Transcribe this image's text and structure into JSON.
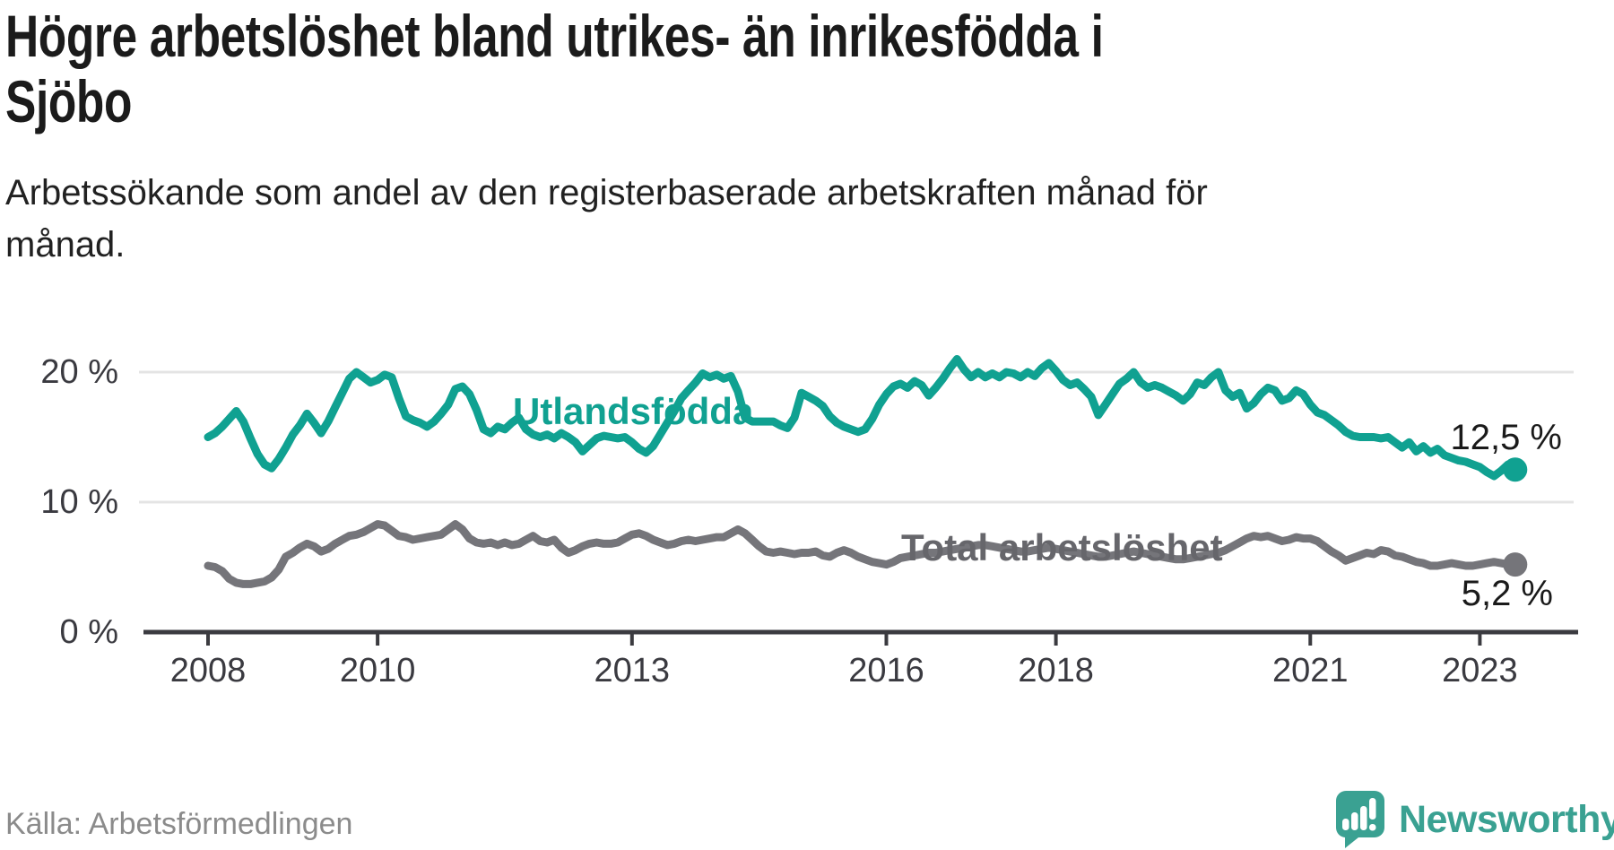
{
  "header": {
    "title": "Högre arbetslöshet bland utrikes- än inrikesfödda i Sjöbo",
    "title_lines": [
      "Högre arbetslöshet bland utrikes- än inrikesfödda i",
      "Sjöbo"
    ],
    "subtitle": "Arbetssökande som andel av den registerbaserade arbetskraften månad för månad.",
    "subtitle_lines": [
      "Arbetssökande som andel av den registerbaserade arbetskraften månad för",
      "månad."
    ]
  },
  "footer": {
    "source": "Källa: Arbetsförmedlingen",
    "brand_name": "Newsworthy",
    "brand_color": "#3aa192",
    "brand_icon": "speech-bubble-bar-chart-exclamation"
  },
  "chart_data": {
    "type": "line",
    "title": "Högre arbetslöshet bland utrikes- än inrikesfödda i Sjöbo",
    "subtitle": "Arbetssökande som andel av den registerbaserade arbetskraften månad för månad.",
    "x_start": "2008-01",
    "x_end": "2023-06",
    "x_frequency": "monthly",
    "ylim": [
      0,
      22
    ],
    "grid": "horizontal",
    "axis_color": "#3b3b40",
    "grid_color": "#e4e4e4",
    "y_axis": {
      "ticks": [
        {
          "value": 0,
          "label": "0 %"
        },
        {
          "value": 10,
          "label": "10 %"
        },
        {
          "value": 20,
          "label": "20 %"
        }
      ]
    },
    "x_tick_years": [
      2008,
      2010,
      2013,
      2016,
      2018,
      2021,
      2023
    ],
    "series": [
      {
        "name": "Utlandsfödda",
        "color": "#10a191",
        "label_color": "#10a191",
        "end_label": "12,5 %",
        "end_value": 12.5,
        "values": [
          15.0,
          15.3,
          15.8,
          16.4,
          17.0,
          16.2,
          14.9,
          13.7,
          12.9,
          12.6,
          13.3,
          14.2,
          15.2,
          15.9,
          16.8,
          16.1,
          15.3,
          16.2,
          17.3,
          18.4,
          19.5,
          20.0,
          19.6,
          19.2,
          19.4,
          19.8,
          19.6,
          18.0,
          16.6,
          16.3,
          16.1,
          15.8,
          16.2,
          16.8,
          17.5,
          18.7,
          18.9,
          18.3,
          17.1,
          15.6,
          15.3,
          15.8,
          15.6,
          16.1,
          16.5,
          15.6,
          15.2,
          15.0,
          15.2,
          14.9,
          15.3,
          15.0,
          14.6,
          13.9,
          14.4,
          14.9,
          15.1,
          15.0,
          14.9,
          15.0,
          14.6,
          14.1,
          13.8,
          14.3,
          15.2,
          16.1,
          17.0,
          18.0,
          18.6,
          19.2,
          19.9,
          19.6,
          19.8,
          19.5,
          19.7,
          18.5,
          16.5,
          16.2,
          16.2,
          16.2,
          16.2,
          15.9,
          15.7,
          16.5,
          18.4,
          18.1,
          17.8,
          17.4,
          16.6,
          16.1,
          15.8,
          15.6,
          15.4,
          15.6,
          16.4,
          17.5,
          18.3,
          18.9,
          19.1,
          18.8,
          19.3,
          19.0,
          18.2,
          18.8,
          19.5,
          20.3,
          21.0,
          20.2,
          19.6,
          20.0,
          19.6,
          19.9,
          19.6,
          20.0,
          19.9,
          19.6,
          20.0,
          19.7,
          20.3,
          20.7,
          20.1,
          19.4,
          19.0,
          19.2,
          18.7,
          18.1,
          16.7,
          17.5,
          18.3,
          19.1,
          19.5,
          20.0,
          19.2,
          18.8,
          19.0,
          18.8,
          18.5,
          18.2,
          17.8,
          18.3,
          19.2,
          19.0,
          19.6,
          20.0,
          18.6,
          18.1,
          18.4,
          17.2,
          17.6,
          18.3,
          18.8,
          18.6,
          17.8,
          18.0,
          18.6,
          18.3,
          17.5,
          16.9,
          16.7,
          16.3,
          15.9,
          15.4,
          15.1,
          15.0,
          15.0,
          15.0,
          14.9,
          15.0,
          14.6,
          14.2,
          14.6,
          13.9,
          14.3,
          13.8,
          14.1,
          13.6,
          13.4,
          13.2,
          13.1,
          12.9,
          12.7,
          12.3,
          12.0,
          12.4,
          12.9,
          12.5
        ]
      },
      {
        "name": "Total arbetslöshet",
        "color": "#75757a",
        "label_color": "#66666b",
        "end_label": "5,2 %",
        "end_value": 5.2,
        "values": [
          5.1,
          5.0,
          4.7,
          4.1,
          3.8,
          3.7,
          3.7,
          3.8,
          3.9,
          4.2,
          4.8,
          5.8,
          6.1,
          6.5,
          6.8,
          6.6,
          6.2,
          6.4,
          6.8,
          7.1,
          7.4,
          7.5,
          7.7,
          8.0,
          8.3,
          8.2,
          7.8,
          7.4,
          7.3,
          7.1,
          7.2,
          7.3,
          7.4,
          7.5,
          7.9,
          8.3,
          7.9,
          7.2,
          6.9,
          6.8,
          6.9,
          6.7,
          6.9,
          6.7,
          6.8,
          7.1,
          7.4,
          7.0,
          6.9,
          7.1,
          6.5,
          6.1,
          6.3,
          6.6,
          6.8,
          6.9,
          6.8,
          6.8,
          6.9,
          7.2,
          7.5,
          7.6,
          7.4,
          7.1,
          6.9,
          6.7,
          6.8,
          7.0,
          7.1,
          7.0,
          7.1,
          7.2,
          7.3,
          7.3,
          7.6,
          7.9,
          7.6,
          7.1,
          6.6,
          6.2,
          6.1,
          6.2,
          6.1,
          6.0,
          6.1,
          6.1,
          6.2,
          5.9,
          5.8,
          6.1,
          6.3,
          6.1,
          5.8,
          5.6,
          5.4,
          5.3,
          5.2,
          5.4,
          5.7,
          5.8,
          5.9,
          6.0,
          6.1,
          6.1,
          6.2,
          6.3,
          6.4,
          6.5,
          6.6,
          6.7,
          6.7,
          6.6,
          6.5,
          6.4,
          6.3,
          6.2,
          6.2,
          6.3,
          6.4,
          6.5,
          6.4,
          6.3,
          6.2,
          6.1,
          6.0,
          5.9,
          5.8,
          5.8,
          5.9,
          6.0,
          6.1,
          6.2,
          6.1,
          6.0,
          5.9,
          5.8,
          5.7,
          5.6,
          5.6,
          5.7,
          5.8,
          5.9,
          6.0,
          6.1,
          6.3,
          6.6,
          6.9,
          7.2,
          7.4,
          7.3,
          7.4,
          7.2,
          7.0,
          7.1,
          7.3,
          7.2,
          7.2,
          7.0,
          6.6,
          6.2,
          5.9,
          5.5,
          5.7,
          5.9,
          6.1,
          6.0,
          6.3,
          6.2,
          5.9,
          5.8,
          5.6,
          5.4,
          5.3,
          5.1,
          5.1,
          5.2,
          5.3,
          5.2,
          5.1,
          5.1,
          5.2,
          5.3,
          5.4,
          5.3,
          5.2,
          5.2
        ]
      }
    ]
  }
}
